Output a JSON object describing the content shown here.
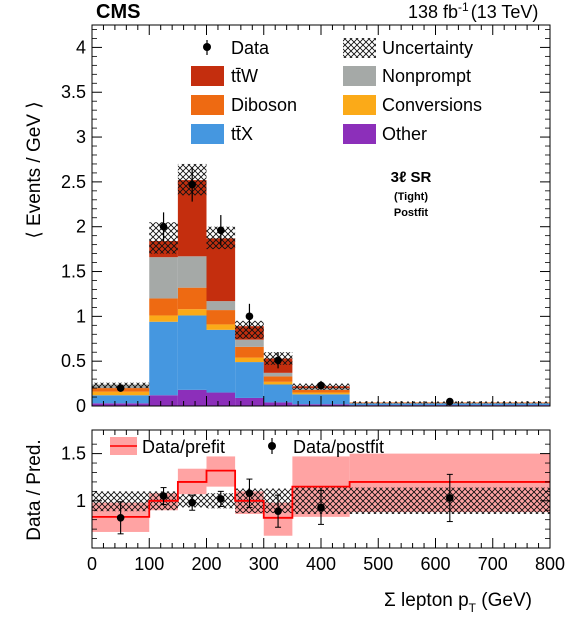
{
  "header": {
    "experiment": "CMS",
    "luminosity": "138 fb",
    "luminosity_exp": "-1",
    "energy": "(13 TeV)"
  },
  "annotation": {
    "line1": "3ℓ SR",
    "line2": "(Tight)",
    "line3": "Postfit"
  },
  "legend_top": {
    "data": "Data",
    "uncertainty": "Uncertainty",
    "ttW": "tt̄W",
    "nonprompt": "Nonprompt",
    "diboson": "Diboson",
    "conversions": "Conversions",
    "ttX": "tt̄X",
    "other": "Other"
  },
  "legend_ratio": {
    "prefit": "Data/prefit",
    "postfit": "Data/postfit"
  },
  "colors": {
    "ttW": "#c42e0e",
    "diboson": "#ee6a12",
    "ttX": "#4597e0",
    "nonprompt": "#a5a9a7",
    "conversions": "#fbaa18",
    "other": "#8c2fba",
    "prefit_band": "#ffa3a3",
    "prefit_line": "#ff0000"
  },
  "chart_data": [
    {
      "type": "bar",
      "stacked": true,
      "ylabel": "⟨ Events / GeV ⟩",
      "ylim": [
        0,
        4.25
      ],
      "yticks": [
        "0",
        "0.5",
        "1",
        "1.5",
        "2",
        "2.5",
        "3",
        "3.5",
        "4"
      ],
      "xlim": [
        0,
        800
      ],
      "bin_edges": [
        0,
        100,
        150,
        200,
        250,
        300,
        350,
        450,
        800
      ],
      "series": [
        {
          "name": "Other",
          "key": "other",
          "values": [
            0.03,
            0.12,
            0.18,
            0.15,
            0.09,
            0.04,
            0.02,
            0.01
          ]
        },
        {
          "name": "tt̄X",
          "key": "ttX",
          "values": [
            0.09,
            0.82,
            0.83,
            0.7,
            0.4,
            0.2,
            0.11,
            0.02
          ]
        },
        {
          "name": "Conversions",
          "key": "conversions",
          "values": [
            0.04,
            0.07,
            0.07,
            0.06,
            0.05,
            0.03,
            0.02,
            0.0
          ]
        },
        {
          "name": "Diboson",
          "key": "diboson",
          "values": [
            0.04,
            0.19,
            0.24,
            0.16,
            0.12,
            0.06,
            0.03,
            0.01
          ]
        },
        {
          "name": "Nonprompt",
          "key": "nonprompt",
          "values": [
            0.04,
            0.46,
            0.35,
            0.1,
            0.08,
            0.04,
            0.02,
            0.0
          ]
        },
        {
          "name": "tt̄W",
          "key": "ttW",
          "values": [
            0.0,
            0.18,
            0.85,
            0.7,
            0.15,
            0.16,
            0.02,
            0.0
          ]
        }
      ],
      "uncertainty_band": {
        "low": [
          0.2,
          1.7,
          2.35,
          1.75,
          0.75,
          0.46,
          0.18,
          0.03
        ],
        "high": [
          0.26,
          2.05,
          2.7,
          2.0,
          0.95,
          0.6,
          0.25,
          0.05
        ]
      },
      "data_points": {
        "x": [
          50,
          125,
          175,
          225,
          275,
          325,
          400,
          625
        ],
        "y": [
          0.2,
          2.0,
          2.47,
          1.96,
          1.0,
          0.51,
          0.23,
          0.05
        ],
        "err": [
          0.04,
          0.16,
          0.19,
          0.17,
          0.14,
          0.09,
          0.05,
          0.01
        ]
      }
    },
    {
      "type": "line",
      "ylabel": "Data / Pred.",
      "xlabel": "Σ lepton p",
      "xlabel_sub": "T",
      "xlabel_unit": " (GeV)",
      "ylim": [
        0.5,
        1.75
      ],
      "yticks": [
        "1",
        "1.5"
      ],
      "xlim": [
        0,
        800
      ],
      "xticks": [
        "0",
        "100",
        "200",
        "300",
        "400",
        "500",
        "600",
        "700",
        "800"
      ],
      "bin_edges": [
        0,
        100,
        150,
        200,
        250,
        300,
        350,
        450,
        800
      ],
      "postfit_band": {
        "low": [
          0.89,
          0.9,
          0.93,
          0.92,
          0.87,
          0.87,
          0.86,
          0.86
        ],
        "high": [
          1.1,
          1.1,
          1.07,
          1.08,
          1.13,
          1.13,
          1.14,
          1.14
        ]
      },
      "prefit": {
        "center": [
          0.83,
          1.0,
          1.2,
          1.32,
          1.0,
          0.82,
          1.15,
          1.2
        ],
        "low": [
          0.67,
          0.9,
          1.07,
          1.15,
          0.86,
          0.63,
          0.83,
          0.88
        ],
        "high": [
          0.98,
          1.08,
          1.34,
          1.47,
          1.1,
          0.98,
          1.47,
          1.5
        ]
      },
      "postfit_points": {
        "x": [
          50,
          125,
          175,
          225,
          275,
          325,
          400,
          625
        ],
        "y": [
          0.82,
          1.05,
          0.98,
          1.02,
          1.08,
          0.89,
          0.93,
          1.03
        ],
        "err": [
          0.17,
          0.09,
          0.08,
          0.08,
          0.15,
          0.17,
          0.18,
          0.25
        ]
      }
    }
  ]
}
